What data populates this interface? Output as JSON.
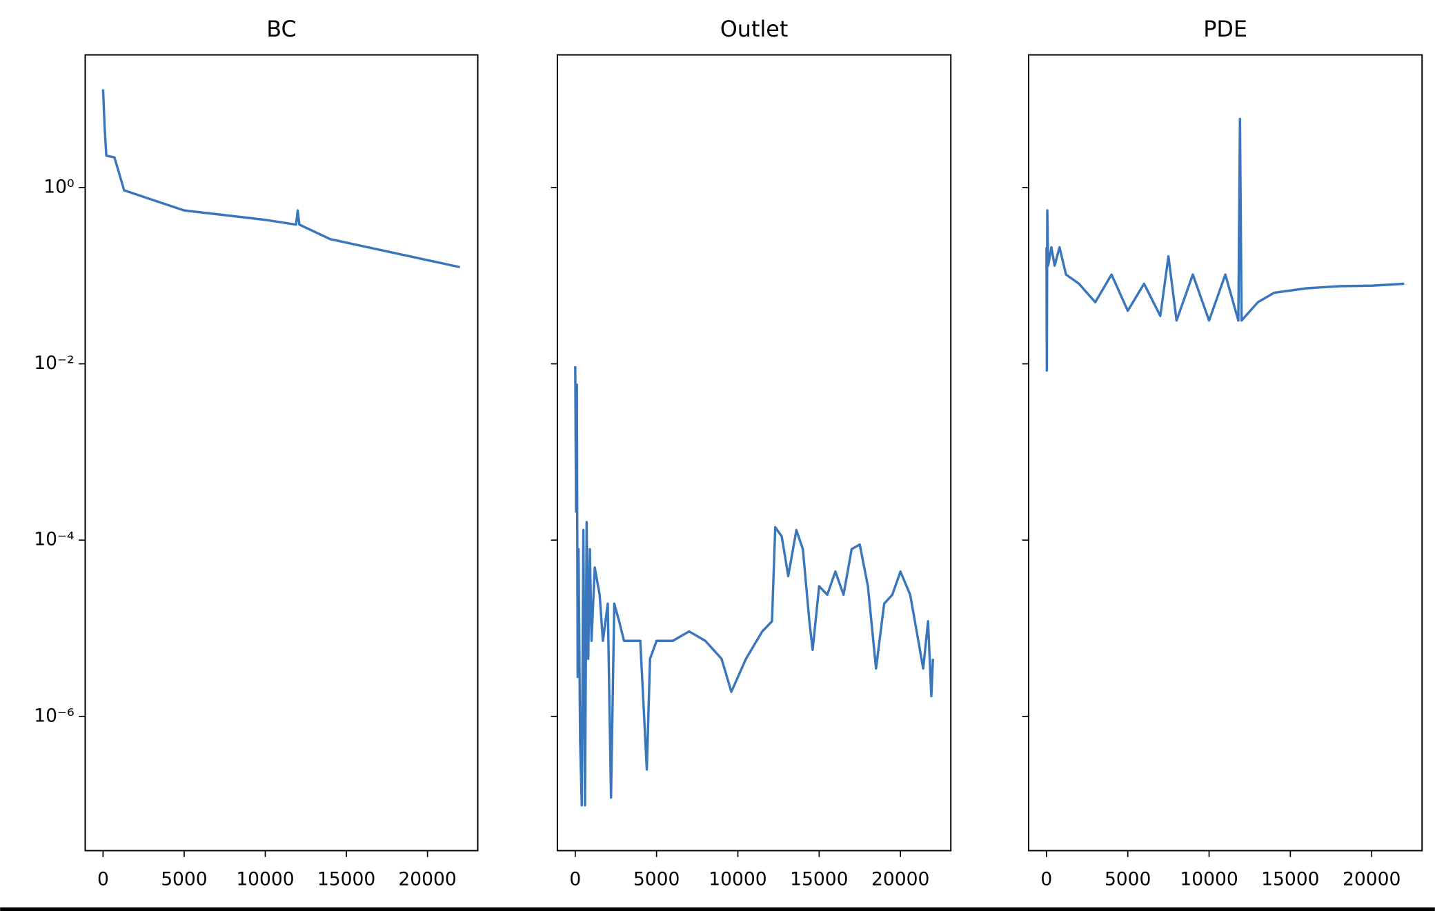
{
  "chart_data": [
    {
      "type": "line",
      "title": "BC",
      "log_y": true,
      "xlim": [
        -1100,
        23100
      ],
      "ylim": [
        3e-08,
        32
      ],
      "xticks": [
        0,
        5000,
        10000,
        15000,
        20000
      ],
      "yticks": [
        {
          "value": 1,
          "label": "10⁰"
        },
        {
          "value": 0.01,
          "label": "10⁻²"
        },
        {
          "value": 0.0001,
          "label": "10⁻⁴"
        },
        {
          "value": 1e-06,
          "label": "10⁻⁶"
        }
      ],
      "x": [
        0,
        100,
        200,
        700,
        1300,
        5000,
        10000,
        11900,
        12000,
        12100,
        14000,
        22000
      ],
      "series": [
        {
          "color": "#3a76bb",
          "values": [
            13,
            4.7,
            2.3,
            2.2,
            0.93,
            0.55,
            0.43,
            0.38,
            0.55,
            0.38,
            0.26,
            0.125
          ]
        }
      ]
    },
    {
      "type": "line",
      "title": "Outlet",
      "log_y": true,
      "xlim": [
        -1100,
        23100
      ],
      "ylim": [
        3e-08,
        32
      ],
      "xticks": [
        0,
        5000,
        10000,
        15000,
        20000
      ],
      "yticks": [
        1,
        0.01,
        0.0001,
        1e-06
      ],
      "x": [
        0,
        50,
        100,
        150,
        200,
        300,
        400,
        500,
        600,
        700,
        800,
        900,
        1000,
        1200,
        1500,
        1700,
        2000,
        2200,
        2400,
        2700,
        3000,
        3500,
        4000,
        4400,
        4600,
        5000,
        6000,
        7000,
        8000,
        9000,
        9600,
        10500,
        11500,
        12100,
        12300,
        12700,
        13100,
        13600,
        14000,
        14400,
        14600,
        15000,
        15500,
        16000,
        16500,
        17000,
        17500,
        18000,
        18500,
        19000,
        19500,
        20000,
        20600,
        21000,
        21400,
        21700,
        21900,
        22000
      ],
      "series": [
        {
          "color": "#3a76bb",
          "values": [
            0.0094,
            0.00021,
            0.0058,
            2.8e-06,
            7.9e-05,
            5.2e-07,
            9.8e-08,
            0.00013,
            9.8e-08,
            0.00016,
            4.5e-06,
            7.9e-05,
            7.2e-06,
            4.9e-05,
            2.4e-05,
            7.2e-06,
            1.9e-05,
            1.2e-07,
            1.9e-05,
            1.2e-05,
            7.2e-06,
            7.2e-06,
            7.2e-06,
            2.5e-07,
            4.5e-06,
            7.2e-06,
            7.2e-06,
            9.2e-06,
            7.2e-06,
            4.5e-06,
            1.9e-06,
            4.5e-06,
            9.2e-06,
            1.2e-05,
            0.00014,
            0.00011,
            3.9e-05,
            0.00013,
            7.9e-05,
            1.2e-05,
            5.7e-06,
            3e-05,
            2.4e-05,
            4.4e-05,
            2.4e-05,
            7.9e-05,
            8.9e-05,
            3e-05,
            3.5e-06,
            1.9e-05,
            2.4e-05,
            4.4e-05,
            2.4e-05,
            9.2e-06,
            3.5e-06,
            1.2e-05,
            1.7e-06,
            4.5e-06
          ]
        }
      ]
    },
    {
      "type": "line",
      "title": "PDE",
      "log_y": true,
      "xlim": [
        -1100,
        23100
      ],
      "ylim": [
        3e-08,
        32
      ],
      "xticks": [
        0,
        5000,
        10000,
        15000,
        20000
      ],
      "yticks": [
        1,
        0.01,
        0.0001,
        1e-06
      ],
      "x": [
        0,
        20,
        50,
        100,
        300,
        500,
        800,
        1200,
        2000,
        3000,
        4000,
        5000,
        6000,
        7000,
        7500,
        8000,
        9000,
        10000,
        11000,
        11800,
        11900,
        12000,
        13000,
        14000,
        16000,
        18000,
        20000,
        22000
      ],
      "series": [
        {
          "color": "#3a76bb",
          "values": [
            0.21,
            0.0084,
            0.55,
            0.13,
            0.21,
            0.13,
            0.21,
            0.103,
            0.081,
            0.05,
            0.103,
            0.04,
            0.081,
            0.035,
            0.166,
            0.031,
            0.103,
            0.031,
            0.103,
            0.031,
            6.0,
            0.031,
            0.05,
            0.064,
            0.072,
            0.076,
            0.077,
            0.081
          ]
        }
      ]
    }
  ]
}
